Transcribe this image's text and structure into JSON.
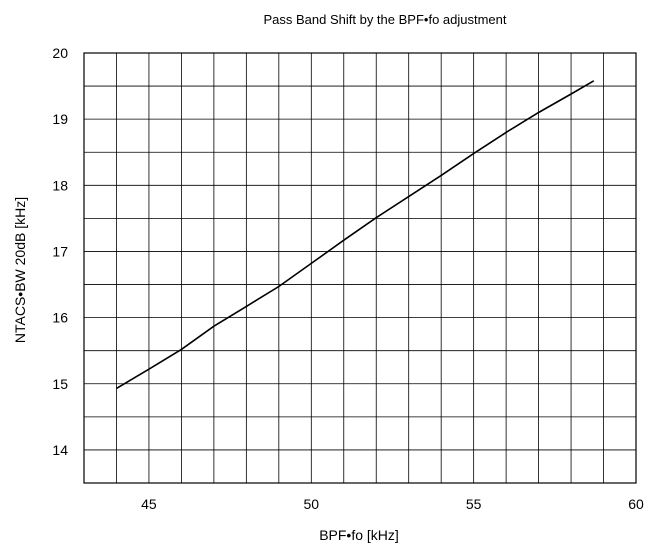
{
  "chart_data": {
    "type": "line",
    "title": "Pass Band Shift by the BPF•fo adjustment",
    "xlabel": "BPF•fo [kHz]",
    "ylabel": "NTACS•BW 20dB [kHz]",
    "xlim": [
      43,
      60
    ],
    "ylim": [
      13.5,
      20
    ],
    "xticks": [
      45,
      50,
      55,
      60
    ],
    "yticks": [
      14,
      15,
      16,
      17,
      18,
      19,
      20
    ],
    "grid": true,
    "x": [
      44,
      45,
      46,
      47,
      48,
      49,
      50,
      51,
      52,
      53,
      54,
      55,
      56,
      57,
      58,
      58.7
    ],
    "y": [
      14.93,
      15.22,
      15.52,
      15.87,
      16.17,
      16.47,
      16.82,
      17.17,
      17.51,
      17.83,
      18.15,
      18.48,
      18.8,
      19.1,
      19.38,
      19.58
    ]
  }
}
